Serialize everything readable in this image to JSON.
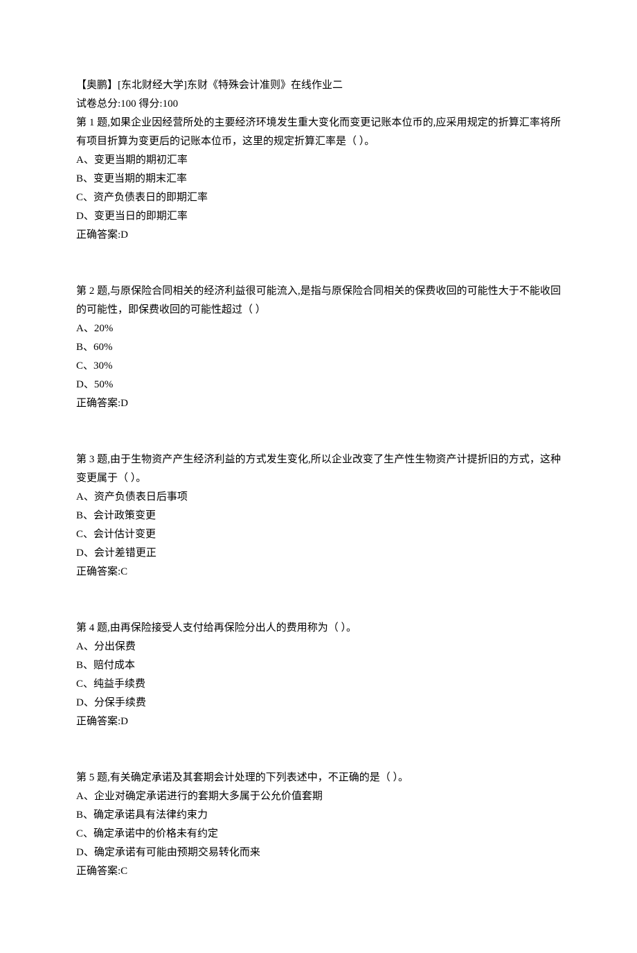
{
  "header": {
    "title": "【奥鹏】[东北财经大学]东财《特殊会计准则》在线作业二",
    "scoreLine": "试卷总分:100     得分:100"
  },
  "questions": [
    {
      "prompt": "第 1 题,如果企业因经营所处的主要经济环境发生重大变化而变更记账本位币的,应采用规定的折算汇率将所有项目折算为变更后的记账本位币，这里的规定折算汇率是（  ）。",
      "options": [
        "A、变更当期的期初汇率",
        "B、变更当期的期末汇率",
        "C、资产负债表日的即期汇率",
        "D、变更当日的即期汇率"
      ],
      "answer": "正确答案:D"
    },
    {
      "prompt": "第 2 题,与原保险合同相关的经济利益很可能流入,是指与原保险合同相关的保费收回的可能性大于不能收回的可能性，即保费收回的可能性超过（ ）",
      "options": [
        "A、20%",
        "B、60%",
        "C、30%",
        "D、50%"
      ],
      "answer": "正确答案:D"
    },
    {
      "prompt": "第 3 题,由于生物资产产生经济利益的方式发生变化,所以企业改变了生产性生物资产计提折旧的方式，这种变更属于（ ）。",
      "options": [
        "A、资产负债表日后事项",
        "B、会计政策变更",
        "C、会计估计变更",
        "D、会计差错更正"
      ],
      "answer": "正确答案:C"
    },
    {
      "prompt": "第 4 题,由再保险接受人支付给再保险分出人的费用称为（ ）。",
      "options": [
        "A、分出保费",
        "B、赔付成本",
        "C、纯益手续费",
        "D、分保手续费"
      ],
      "answer": "正确答案:D"
    },
    {
      "prompt": "第 5 题,有关确定承诺及其套期会计处理的下列表述中，不正确的是（ ）。",
      "options": [
        "A、企业对确定承诺进行的套期大多属于公允价值套期",
        "B、确定承诺具有法律约束力",
        "C、确定承诺中的价格未有约定",
        "D、确定承诺有可能由预期交易转化而来"
      ],
      "answer": "正确答案:C"
    }
  ]
}
